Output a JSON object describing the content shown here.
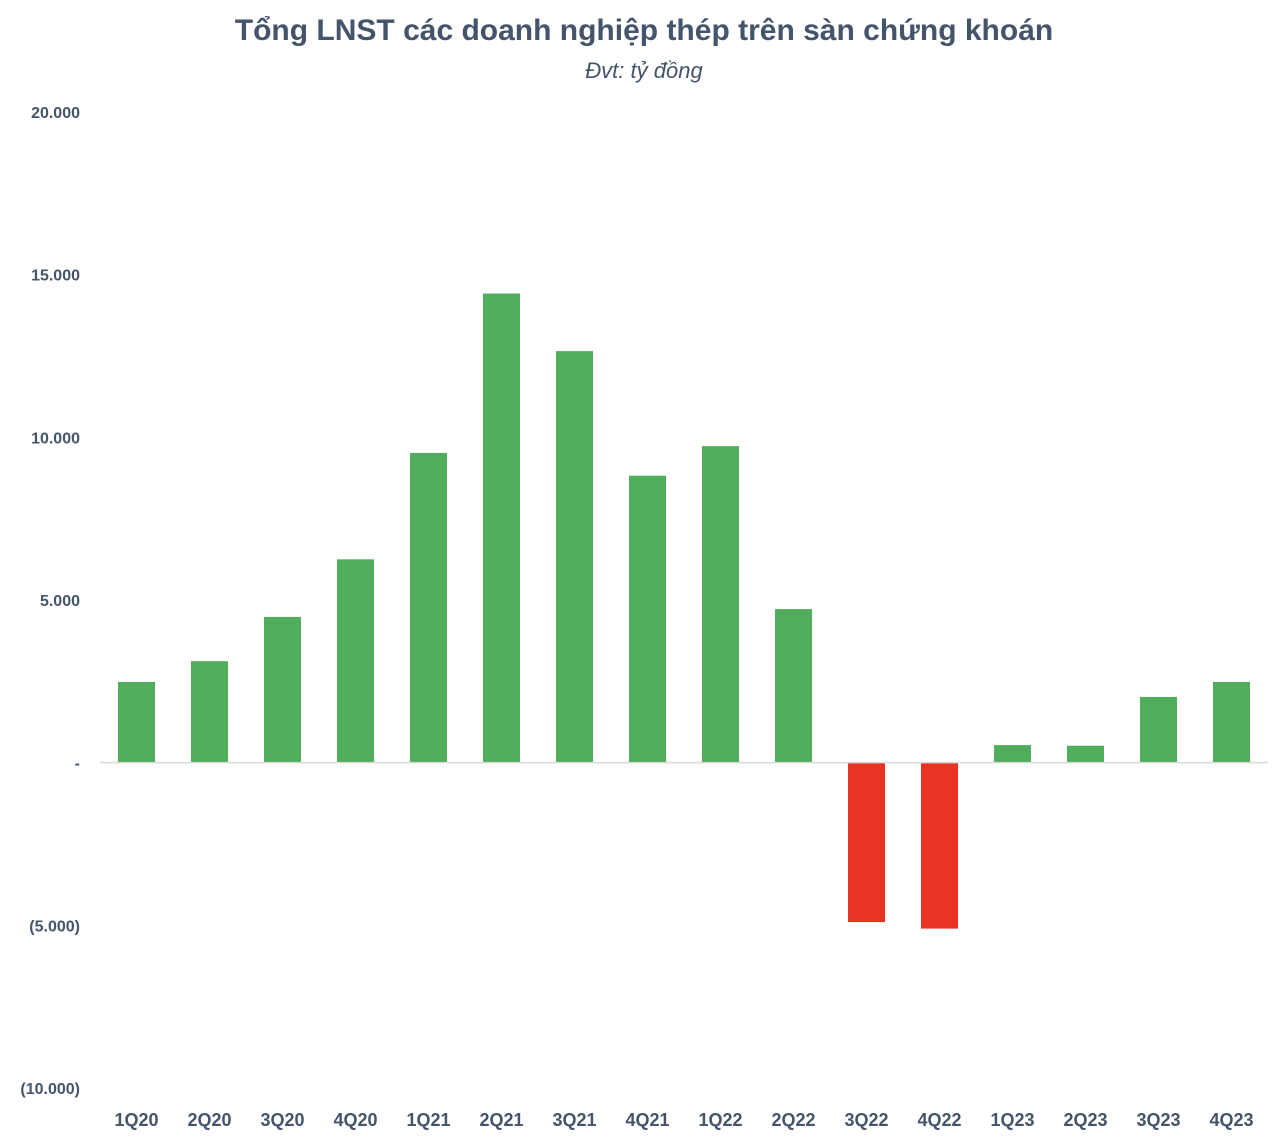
{
  "chart_data": {
    "type": "bar",
    "title": "Tổng LNST các doanh nghiệp thép trên sàn chứng khoán",
    "subtitle": "Đvt: tỷ đồng",
    "categories": [
      "1Q20",
      "2Q20",
      "3Q20",
      "4Q20",
      "1Q21",
      "2Q21",
      "3Q21",
      "4Q21",
      "1Q22",
      "2Q22",
      "3Q22",
      "4Q22",
      "1Q23",
      "2Q23",
      "3Q23",
      "4Q23"
    ],
    "values": [
      2480,
      3120,
      4480,
      6250,
      9520,
      14420,
      12650,
      8820,
      9730,
      4720,
      -4900,
      -5100,
      540,
      520,
      2020,
      2480
    ],
    "ylim": [
      -10000,
      20000
    ],
    "yticks": [
      20000,
      15000,
      10000,
      5000,
      0,
      -5000,
      -10000
    ],
    "ytick_labels": [
      "20.000",
      "15.000",
      "10.000",
      "5.000",
      "-",
      "(5.000)",
      "(10.000)"
    ],
    "grid": false,
    "colors": {
      "positive": "#4fad5b",
      "negative": "#ea3323",
      "baseline": "#d9d9d9"
    }
  }
}
